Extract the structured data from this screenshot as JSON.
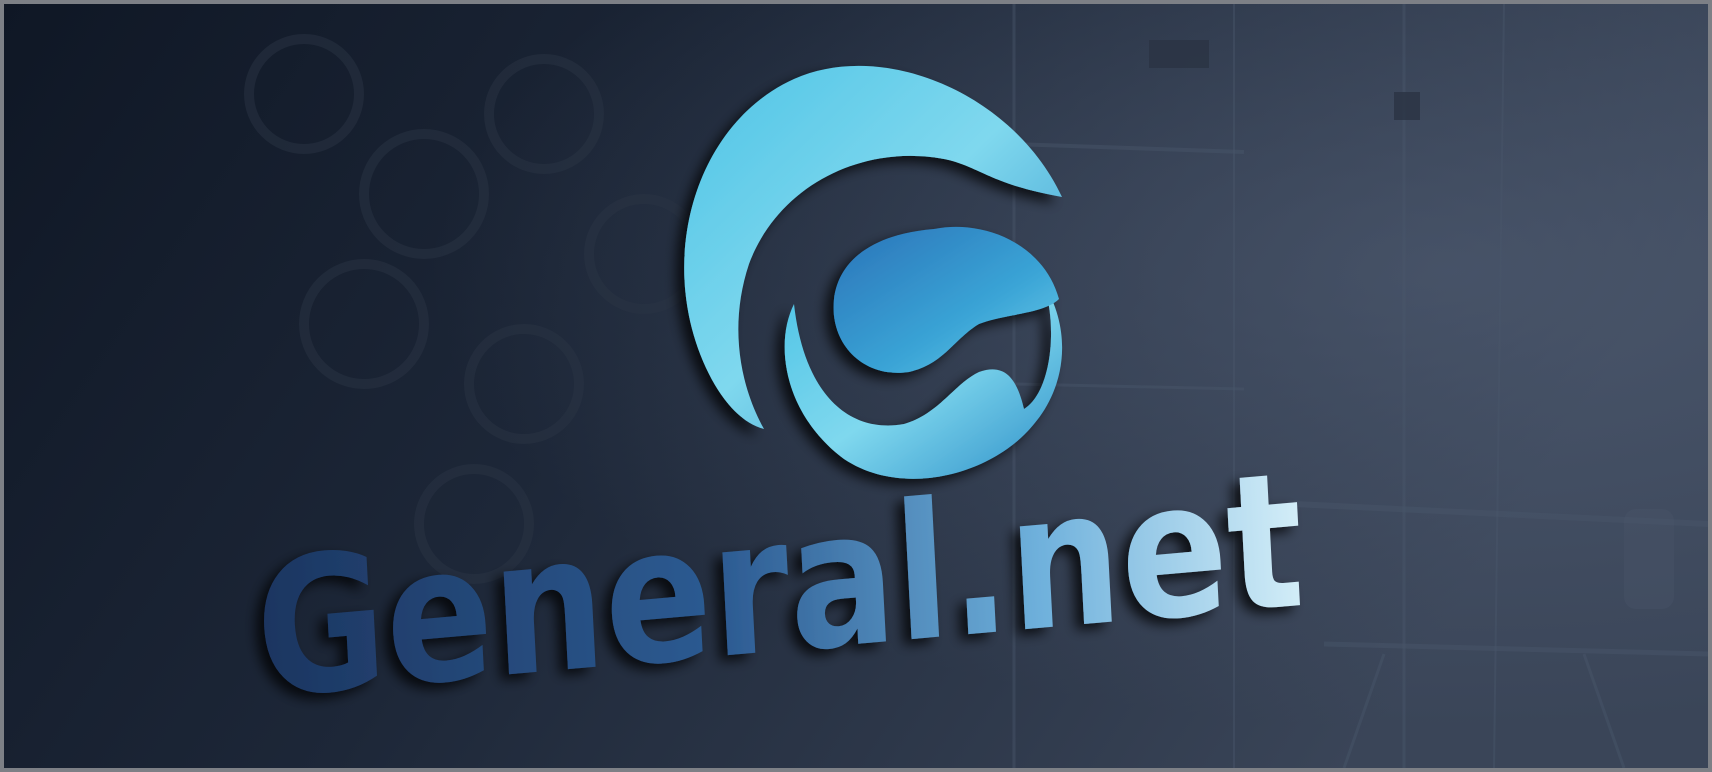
{
  "logo": {
    "wordmark": "General.net",
    "colors": {
      "wall_dark": "#121a28",
      "wall_light": "#3b4659",
      "logo_light": "#7fd8ee",
      "logo_mid": "#3aa4d6",
      "logo_deep": "#2a73b8",
      "text_dark": "#1c3560",
      "text_light": "#c8e6f4"
    }
  }
}
